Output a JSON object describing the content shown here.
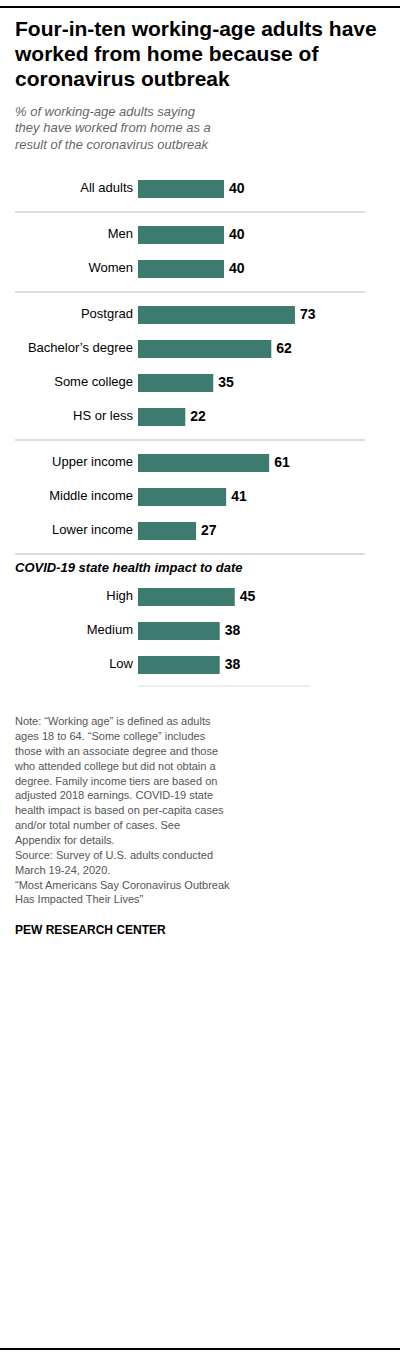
{
  "chart_data": {
    "type": "bar",
    "orientation": "horizontal",
    "title": "Four-in-ten working-age adults have worked from home because of coronavirus outbreak",
    "subtitle": "% of working-age adults saying\nthey have worked from home as a\nresult of the coronavirus outbreak",
    "categories": [
      "All adults",
      "Men",
      "Women",
      "Postgrad",
      "Bachelor’s degree",
      "Some college",
      "HS or less",
      "Upper income",
      "Middle income",
      "Lower income",
      "High",
      "Medium",
      "Low"
    ],
    "values": [
      40,
      40,
      40,
      73,
      62,
      35,
      22,
      61,
      41,
      27,
      45,
      38,
      38
    ],
    "color": "#3d7a6f",
    "xlim": [
      0,
      80
    ],
    "data_labels": true,
    "tick_labels": false,
    "grid": false,
    "annotations": [
      "COVID-19 state health impact to date"
    ],
    "note": "Note: “Working age” is defined as adults\nages 18 to 64. “Some college” includes\nthose with an associate degree and those\nwho attended college but did not obtain a\ndegree. Family income tiers are based on\nadjusted 2018 earnings. COVID-19 state\nhealth impact is based on per-capita cases\nand/or total number of cases. See\nAppendix for details.\nSource: Survey of U.S. adults conducted\nMarch 19-24, 2020.\n“Most Americans Say Coronavirus Outbreak\nHas Impacted Their Lives”",
    "credit": "PEW RESEARCH CENTER"
  }
}
